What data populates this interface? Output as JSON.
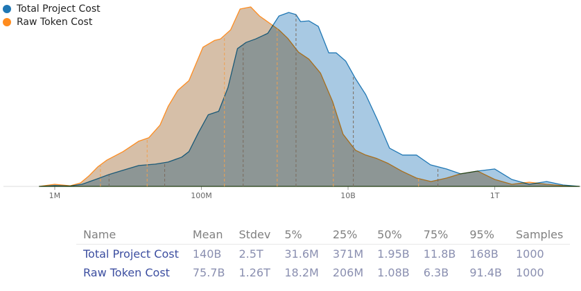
{
  "chart_data": {
    "type": "area",
    "x_scale": "log",
    "x_ticks": [
      {
        "value": 1000000,
        "label": "1M"
      },
      {
        "value": 100000000,
        "label": "100M"
      },
      {
        "value": 10000000000,
        "label": "10B"
      },
      {
        "value": 1000000000000,
        "label": "1T"
      }
    ],
    "xlim": [
      200000,
      15000000000000
    ],
    "legend_position": "top-left",
    "series": [
      {
        "name": "Total Project Cost",
        "color": "#1f77b4",
        "fill": "#a3c6e2",
        "percentile_markers": [
          5500000,
          31600000,
          371000000,
          1950000000,
          11800000000,
          168000000000
        ],
        "density_x": [
          616000,
          1000000,
          1620000,
          2350000,
          3610000,
          5500000,
          8430000,
          14000000,
          23500000,
          35200000,
          53900000,
          67600000,
          90900000,
          124000000,
          172000000,
          230000000,
          310000000,
          407000000,
          550000000,
          804000000,
          1140000000,
          1550000000,
          1950000000,
          2250000000,
          2920000000,
          3930000000,
          5460000000,
          6880000000,
          9300000000,
          12600000000,
          17400000000,
          25300000000,
          36700000000,
          55300000000,
          85700000000,
          133000000000,
          220000000000,
          341000000000,
          584000000000,
          1000000000000,
          1710000000000,
          2960000000000,
          5100000000000,
          8550000000000,
          14300000000000
        ],
        "density_y": [
          0,
          1.2,
          0.5,
          3,
          10,
          17,
          23,
          30,
          32,
          35,
          42,
          50,
          77,
          103,
          108,
          142,
          198,
          207,
          212,
          220,
          245,
          250,
          247,
          237,
          238,
          230,
          192,
          192,
          180,
          155,
          132,
          95,
          55,
          45,
          45,
          31,
          25,
          18,
          22,
          25,
          10,
          3,
          7,
          2,
          0
        ]
      },
      {
        "name": "Raw Token Cost",
        "color": "#ff8c1f",
        "fill": "#c8a98b",
        "percentile_markers": [
          4200000,
          18200000,
          206000000,
          1080000000,
          6300000000,
          91400000000
        ],
        "density_x": [
          616000,
          1000000,
          1620000,
          2250000,
          2920000,
          3850000,
          5170000,
          8550000,
          14000000,
          19200000,
          27200000,
          35200000,
          47500000,
          67600000,
          105000000,
          152000000,
          182000000,
          250000000,
          337000000,
          470000000,
          620000000,
          924000000,
          1140000000,
          1500000000,
          2110000000,
          2920000000,
          4200000000,
          6150000000,
          8550000000,
          12600000000,
          17400000000,
          24700000000,
          35200000000,
          53900000000,
          85700000000,
          135000000000,
          220000000000,
          341000000000,
          584000000000,
          1000000000000,
          1710000000000,
          2960000000000,
          5100000000000,
          8550000000000,
          14300000000000
        ],
        "density_y": [
          0,
          3,
          0.8,
          5,
          15,
          28,
          38,
          50,
          65,
          70,
          88,
          115,
          138,
          152,
          200,
          210,
          212,
          225,
          255,
          258,
          245,
          232,
          225,
          213,
          193,
          183,
          163,
          122,
          75,
          52,
          45,
          40,
          33,
          22,
          12,
          7,
          12,
          18,
          22,
          10,
          3,
          6,
          3,
          1,
          0
        ]
      }
    ]
  },
  "stats_table": {
    "headers": [
      "Name",
      "Mean",
      "Stdev",
      "5%",
      "25%",
      "50%",
      "75%",
      "95%",
      "Samples"
    ],
    "rows": [
      [
        "Total Project Cost",
        "140B",
        "2.5T",
        "31.6M",
        "371M",
        "1.95B",
        "11.8B",
        "168B",
        "1000"
      ],
      [
        "Raw Token Cost",
        "75.7B",
        "1.26T",
        "18.2M",
        "206M",
        "1.08B",
        "6.3B",
        "91.4B",
        "1000"
      ]
    ]
  }
}
